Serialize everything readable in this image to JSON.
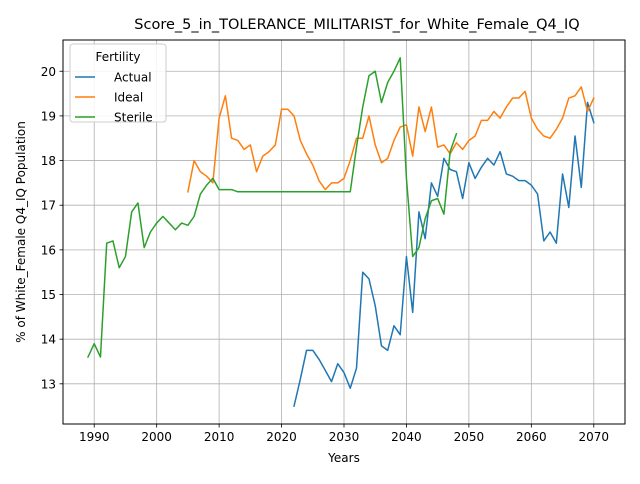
{
  "chart_data": {
    "type": "line",
    "title": "Score_5_in_TOLERANCE_MILITARIST_for_White_Female_Q4_IQ",
    "xlabel": "Years",
    "ylabel": "% of White_Female Q4_IQ Population",
    "xlim": [
      1985,
      2075
    ],
    "ylim": [
      12.1,
      20.7
    ],
    "xticks": [
      1990,
      2000,
      2010,
      2020,
      2030,
      2040,
      2050,
      2060,
      2070
    ],
    "yticks": [
      13,
      14,
      15,
      16,
      17,
      18,
      19,
      20
    ],
    "grid": true,
    "legend": {
      "title": "Fertility",
      "placement": "top-left"
    },
    "series": [
      {
        "name": "Actual",
        "color": "#1f77b4",
        "points": [
          [
            2022,
            12.5
          ],
          [
            2023,
            13.1
          ],
          [
            2024,
            13.75
          ],
          [
            2025,
            13.75
          ],
          [
            2026,
            13.55
          ],
          [
            2027,
            13.3
          ],
          [
            2028,
            13.05
          ],
          [
            2029,
            13.45
          ],
          [
            2030,
            13.25
          ],
          [
            2031,
            12.9
          ],
          [
            2032,
            13.35
          ],
          [
            2033,
            15.5
          ],
          [
            2034,
            15.35
          ],
          [
            2035,
            14.75
          ],
          [
            2036,
            13.85
          ],
          [
            2037,
            13.75
          ],
          [
            2038,
            14.3
          ],
          [
            2039,
            14.1
          ],
          [
            2040,
            15.85
          ],
          [
            2041,
            14.6
          ],
          [
            2042,
            16.85
          ],
          [
            2043,
            16.25
          ],
          [
            2044,
            17.5
          ],
          [
            2045,
            17.2
          ],
          [
            2046,
            18.05
          ],
          [
            2047,
            17.8
          ],
          [
            2048,
            17.75
          ],
          [
            2049,
            17.15
          ],
          [
            2050,
            17.95
          ],
          [
            2051,
            17.6
          ],
          [
            2052,
            17.85
          ],
          [
            2053,
            18.05
          ],
          [
            2054,
            17.9
          ],
          [
            2055,
            18.2
          ],
          [
            2056,
            17.7
          ],
          [
            2057,
            17.65
          ],
          [
            2058,
            17.55
          ],
          [
            2059,
            17.55
          ],
          [
            2060,
            17.45
          ],
          [
            2061,
            17.25
          ],
          [
            2062,
            16.2
          ],
          [
            2063,
            16.4
          ],
          [
            2064,
            16.15
          ],
          [
            2065,
            17.7
          ],
          [
            2066,
            16.95
          ],
          [
            2067,
            18.55
          ],
          [
            2068,
            17.4
          ],
          [
            2069,
            19.3
          ],
          [
            2070,
            18.85
          ]
        ]
      },
      {
        "name": "Ideal",
        "color": "#ff7f0e",
        "points": [
          [
            2005,
            17.3
          ],
          [
            2006,
            18.0
          ],
          [
            2007,
            17.75
          ],
          [
            2008,
            17.65
          ],
          [
            2009,
            17.5
          ],
          [
            2010,
            18.95
          ],
          [
            2011,
            19.45
          ],
          [
            2012,
            18.5
          ],
          [
            2013,
            18.45
          ],
          [
            2014,
            18.25
          ],
          [
            2015,
            18.35
          ],
          [
            2016,
            17.75
          ],
          [
            2017,
            18.1
          ],
          [
            2018,
            18.2
          ],
          [
            2019,
            18.35
          ],
          [
            2020,
            19.15
          ],
          [
            2021,
            19.15
          ],
          [
            2022,
            19.0
          ],
          [
            2023,
            18.45
          ],
          [
            2024,
            18.15
          ],
          [
            2025,
            17.9
          ],
          [
            2026,
            17.55
          ],
          [
            2027,
            17.35
          ],
          [
            2028,
            17.5
          ],
          [
            2029,
            17.5
          ],
          [
            2030,
            17.6
          ],
          [
            2031,
            18.0
          ],
          [
            2032,
            18.5
          ],
          [
            2033,
            18.5
          ],
          [
            2034,
            19.0
          ],
          [
            2035,
            18.35
          ],
          [
            2036,
            17.95
          ],
          [
            2037,
            18.05
          ],
          [
            2038,
            18.45
          ],
          [
            2039,
            18.75
          ],
          [
            2040,
            18.8
          ],
          [
            2041,
            18.1
          ],
          [
            2042,
            19.2
          ],
          [
            2043,
            18.65
          ],
          [
            2044,
            19.2
          ],
          [
            2045,
            18.3
          ],
          [
            2046,
            18.35
          ],
          [
            2047,
            18.15
          ],
          [
            2048,
            18.4
          ],
          [
            2049,
            18.25
          ],
          [
            2050,
            18.45
          ],
          [
            2051,
            18.55
          ],
          [
            2052,
            18.9
          ],
          [
            2053,
            18.9
          ],
          [
            2054,
            19.1
          ],
          [
            2055,
            18.95
          ],
          [
            2056,
            19.2
          ],
          [
            2057,
            19.4
          ],
          [
            2058,
            19.4
          ],
          [
            2059,
            19.55
          ],
          [
            2060,
            18.95
          ],
          [
            2061,
            18.7
          ],
          [
            2062,
            18.55
          ],
          [
            2063,
            18.5
          ],
          [
            2064,
            18.7
          ],
          [
            2065,
            18.95
          ],
          [
            2066,
            19.4
          ],
          [
            2067,
            19.45
          ],
          [
            2068,
            19.65
          ],
          [
            2069,
            19.1
          ],
          [
            2070,
            19.4
          ]
        ]
      },
      {
        "name": "Sterile",
        "color": "#2ca02c",
        "points": [
          [
            1989,
            13.6
          ],
          [
            1990,
            13.9
          ],
          [
            1991,
            13.6
          ],
          [
            1992,
            16.15
          ],
          [
            1993,
            16.2
          ],
          [
            1994,
            15.6
          ],
          [
            1995,
            15.85
          ],
          [
            1996,
            16.85
          ],
          [
            1997,
            17.05
          ],
          [
            1998,
            16.05
          ],
          [
            1999,
            16.4
          ],
          [
            2000,
            16.6
          ],
          [
            2001,
            16.75
          ],
          [
            2002,
            16.6
          ],
          [
            2003,
            16.45
          ],
          [
            2004,
            16.6
          ],
          [
            2005,
            16.55
          ],
          [
            2006,
            16.75
          ],
          [
            2007,
            17.25
          ],
          [
            2008,
            17.45
          ],
          [
            2009,
            17.6
          ],
          [
            2010,
            17.35
          ],
          [
            2011,
            17.35
          ],
          [
            2012,
            17.35
          ],
          [
            2013,
            17.3
          ],
          [
            2014,
            17.3
          ],
          [
            2015,
            17.3
          ],
          [
            2016,
            17.3
          ],
          [
            2017,
            17.3
          ],
          [
            2018,
            17.3
          ],
          [
            2019,
            17.3
          ],
          [
            2020,
            17.3
          ],
          [
            2021,
            17.3
          ],
          [
            2022,
            17.3
          ],
          [
            2023,
            17.3
          ],
          [
            2024,
            17.3
          ],
          [
            2025,
            17.3
          ],
          [
            2026,
            17.3
          ],
          [
            2027,
            17.3
          ],
          [
            2028,
            17.3
          ],
          [
            2029,
            17.3
          ],
          [
            2030,
            17.3
          ],
          [
            2031,
            17.3
          ],
          [
            2032,
            18.3
          ],
          [
            2033,
            19.2
          ],
          [
            2034,
            19.9
          ],
          [
            2035,
            20.0
          ],
          [
            2036,
            19.3
          ],
          [
            2037,
            19.75
          ],
          [
            2038,
            20.0
          ],
          [
            2039,
            20.3
          ],
          [
            2040,
            17.6
          ],
          [
            2041,
            15.85
          ],
          [
            2042,
            16.05
          ],
          [
            2043,
            16.7
          ],
          [
            2044,
            17.1
          ],
          [
            2045,
            17.15
          ],
          [
            2046,
            16.8
          ],
          [
            2047,
            18.2
          ],
          [
            2048,
            18.6
          ]
        ]
      }
    ]
  }
}
